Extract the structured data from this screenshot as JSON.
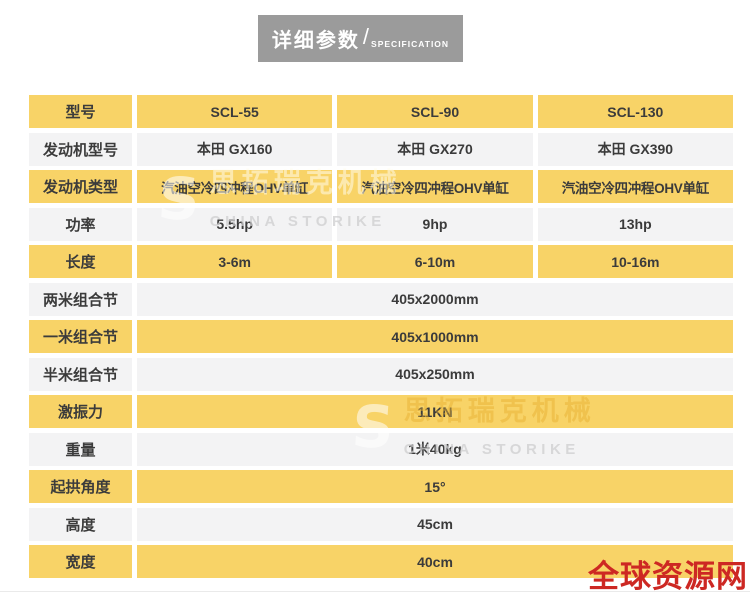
{
  "header": {
    "title_cn": "详细参数",
    "divider": "/",
    "title_en": "SPECIFICATION"
  },
  "table": {
    "rows": [
      {
        "label": "型号",
        "values": [
          "SCL-55",
          "SCL-90",
          "SCL-130"
        ]
      },
      {
        "label": "发动机型号",
        "values": [
          "本田 GX160",
          "本田 GX270",
          "本田 GX390"
        ]
      },
      {
        "label": "发动机类型",
        "values": [
          "汽油空冷四冲程OHV单缸",
          "汽油空冷四冲程OHV单缸",
          "汽油空冷四冲程OHV单缸"
        ]
      },
      {
        "label": "功率",
        "values": [
          "5.5hp",
          "9hp",
          "13hp"
        ]
      },
      {
        "label": "长度",
        "values": [
          "3-6m",
          "6-10m",
          "10-16m"
        ]
      },
      {
        "label": "两米组合节",
        "values": [
          "405x2000mm"
        ]
      },
      {
        "label": "一米组合节",
        "values": [
          "405x1000mm"
        ]
      },
      {
        "label": "半米组合节",
        "values": [
          "405x250mm"
        ]
      },
      {
        "label": "激振力",
        "values": [
          "11KN"
        ]
      },
      {
        "label": "重量",
        "values": [
          "1米40kg"
        ]
      },
      {
        "label": "起拱角度",
        "values": [
          "15°"
        ]
      },
      {
        "label": "高度",
        "values": [
          "45cm"
        ]
      },
      {
        "label": "宽度",
        "values": [
          "40cm"
        ]
      }
    ]
  },
  "watermark": {
    "logo_glyph": "S",
    "text_cn": "思拓瑞克机械",
    "text_en": "CHINA STORIKE"
  },
  "footer_badge": {
    "text": "全球资源网"
  },
  "colors": {
    "row_yellow": "#f8d367",
    "row_light": "#f3f3f4",
    "header_gray": "#9b9b9b",
    "text": "#3b3b3b",
    "badge_red": "#cd2823"
  }
}
